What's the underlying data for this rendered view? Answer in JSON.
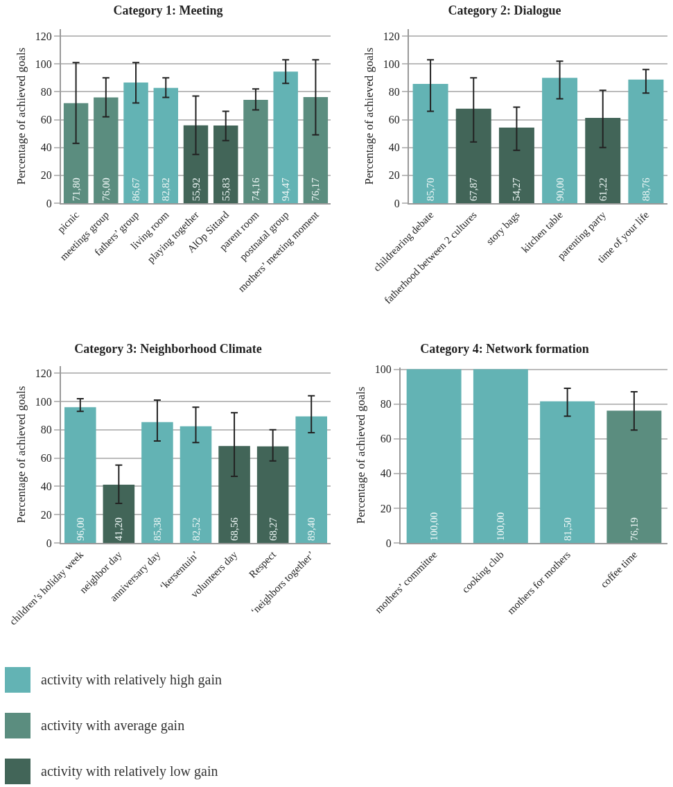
{
  "chart_data": [
    {
      "type": "bar",
      "title": "Category 1: Meeting",
      "ylabel": "Percentage of achieved goals",
      "categories": [
        "picnic",
        "meetings group",
        "fathers’ group",
        "living room",
        "playing together",
        "AlOp Sittard",
        "parent room",
        "postnatal group",
        "mothers’ meeting moment"
      ],
      "ylim": [
        0,
        125
      ],
      "yticks": [
        0,
        20,
        40,
        60,
        80,
        100,
        120
      ],
      "grid": "y",
      "legend": "bottom",
      "series": [
        {
          "name": "activity with relatively high gain",
          "color": "#63b3b4",
          "values": [
            null,
            null,
            86.67,
            82.82,
            null,
            null,
            null,
            94.47,
            null
          ],
          "errors": [
            null,
            null,
            [
              72,
              101
            ],
            [
              76,
              90
            ],
            null,
            null,
            null,
            [
              86,
              103
            ],
            null
          ],
          "value_labels": [
            null,
            null,
            "86,67",
            "82,82",
            null,
            null,
            null,
            "94,47",
            null
          ]
        },
        {
          "name": "activity with average gain",
          "color": "#5b8d7f",
          "values": [
            71.8,
            76.0,
            null,
            null,
            null,
            null,
            74.16,
            null,
            76.17
          ],
          "errors": [
            [
              43,
              101
            ],
            [
              62,
              90
            ],
            null,
            null,
            null,
            null,
            [
              67,
              82
            ],
            null,
            [
              49,
              103
            ]
          ],
          "value_labels": [
            "71,80",
            "76,00",
            null,
            null,
            null,
            null,
            "74,16",
            null,
            "76,17"
          ]
        },
        {
          "name": "activity with relatively low gain",
          "color": "#426558",
          "values": [
            null,
            null,
            null,
            null,
            55.92,
            55.83,
            null,
            null,
            null
          ],
          "errors": [
            null,
            null,
            null,
            null,
            [
              35,
              77
            ],
            [
              45,
              66
            ],
            null,
            null,
            null
          ],
          "value_labels": [
            null,
            null,
            null,
            null,
            "55,92",
            "55,83",
            null,
            null,
            null
          ]
        }
      ]
    },
    {
      "type": "bar",
      "title": "Category 2: Dialogue",
      "ylabel": "Percentage of achieved goals",
      "categories": [
        "childrearing debate",
        "fatherhood between 2 cultures",
        "story bags",
        "kitchen table",
        "parenting party",
        "time of your life"
      ],
      "ylim": [
        0,
        125
      ],
      "yticks": [
        0,
        20,
        40,
        60,
        80,
        100,
        120
      ],
      "grid": "y",
      "series": [
        {
          "name": "activity with relatively high gain",
          "color": "#63b3b4",
          "values": [
            85.7,
            null,
            null,
            90.0,
            null,
            88.76
          ],
          "errors": [
            [
              66,
              103
            ],
            null,
            null,
            [
              75,
              102
            ],
            null,
            [
              79,
              96
            ]
          ],
          "value_labels": [
            "85,70",
            null,
            null,
            "90,00",
            null,
            "88,76"
          ]
        },
        {
          "name": "activity with relatively low gain",
          "color": "#426558",
          "values": [
            null,
            67.87,
            54.27,
            null,
            61.22,
            null
          ],
          "errors": [
            null,
            [
              44,
              90
            ],
            [
              38,
              69
            ],
            null,
            [
              40,
              81
            ],
            null
          ],
          "value_labels": [
            null,
            "67,87",
            "54,27",
            null,
            "61,22",
            null
          ]
        }
      ]
    },
    {
      "type": "bar",
      "title": "Category 3: Neighborhood Climate",
      "ylabel": "Percentage of achieved goals",
      "categories": [
        "children’s holiday week",
        "neighbor day",
        "anniversary day",
        "‘kersentuin’",
        "volunteers day",
        "Respect",
        "‘neighbors together’"
      ],
      "ylim": [
        0,
        125
      ],
      "yticks": [
        0,
        20,
        40,
        60,
        80,
        100,
        120
      ],
      "grid": "y",
      "series": [
        {
          "name": "activity with relatively high gain",
          "color": "#63b3b4",
          "values": [
            96.0,
            null,
            85.38,
            82.52,
            null,
            null,
            89.4
          ],
          "errors": [
            [
              93,
              102
            ],
            null,
            [
              72,
              101
            ],
            [
              71,
              96
            ],
            null,
            null,
            [
              78,
              104
            ]
          ],
          "value_labels": [
            "96,00",
            null,
            "85,38",
            "82,52",
            null,
            null,
            "89,40"
          ]
        },
        {
          "name": "activity with relatively low gain",
          "color": "#426558",
          "values": [
            null,
            41.2,
            null,
            null,
            68.56,
            68.27,
            null
          ],
          "errors": [
            null,
            [
              28,
              55
            ],
            null,
            null,
            [
              47,
              92
            ],
            [
              58,
              80
            ],
            null
          ],
          "value_labels": [
            null,
            "41,20",
            null,
            null,
            "68,56",
            "68,27",
            null
          ]
        }
      ]
    },
    {
      "type": "bar",
      "title": "Category 4: Network formation",
      "ylabel": "Percentage of achieved goals",
      "categories": [
        "mothers’ committee",
        "cooking club",
        "mothers for mothers",
        "coffee time"
      ],
      "ylim": [
        0,
        101
      ],
      "yticks": [
        0,
        20,
        40,
        60,
        80,
        100
      ],
      "grid": "y",
      "series": [
        {
          "name": "activity with relatively high gain",
          "color": "#63b3b4",
          "values": [
            100.0,
            100.0,
            81.5,
            null
          ],
          "errors": [
            null,
            null,
            [
              73,
              89
            ],
            null
          ],
          "value_labels": [
            "100,00",
            "100,00",
            "81,50",
            null
          ]
        },
        {
          "name": "activity with average gain",
          "color": "#5b8d7f",
          "values": [
            null,
            null,
            null,
            76.19
          ],
          "errors": [
            null,
            null,
            null,
            [
              65,
              87
            ]
          ],
          "value_labels": [
            null,
            null,
            null,
            "76,19"
          ]
        }
      ]
    }
  ]
}
